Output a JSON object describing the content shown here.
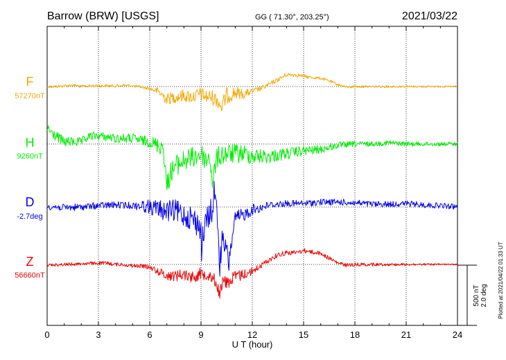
{
  "header": {
    "station": "Barrow (BRW)  [USGS]",
    "coords": "GG ( 71.30°, 203.25°)",
    "date": "2021/03/22"
  },
  "colors": {
    "F": "#f4a800",
    "H": "#00ee00",
    "D": "#0000ee",
    "Z": "#ee0000",
    "axis": "#000000",
    "grid": "#000000"
  },
  "chart_data": {
    "type": "line",
    "xlabel": "U T (hour)",
    "xlim": [
      0,
      24
    ],
    "xticks": [
      "0",
      "3",
      "6",
      "9",
      "12",
      "15",
      "18",
      "21",
      "24"
    ],
    "grid": "dotted",
    "scale_bar": {
      "nT": "500 nT",
      "deg": "2.0 deg"
    },
    "footer": "Plotted at 2021/04/22 01:33 UT",
    "series": [
      {
        "name": "F",
        "baseline": "57270nT",
        "color_key": "F",
        "points": [
          [
            0,
            125
          ],
          [
            0.5,
            125
          ],
          [
            1,
            124
          ],
          [
            1.5,
            123
          ],
          [
            2,
            125
          ],
          [
            2.5,
            124
          ],
          [
            3,
            124
          ],
          [
            3.5,
            124
          ],
          [
            4,
            124
          ],
          [
            4.5,
            123
          ],
          [
            5,
            124
          ],
          [
            5.5,
            126
          ],
          [
            6,
            128
          ],
          [
            6.5,
            132
          ],
          [
            7,
            143
          ],
          [
            7.5,
            140
          ],
          [
            8,
            138
          ],
          [
            8.5,
            140
          ],
          [
            9,
            136
          ],
          [
            9.3,
            140
          ],
          [
            9.6,
            140
          ],
          [
            10,
            145
          ],
          [
            10.2,
            155
          ],
          [
            10.5,
            138
          ],
          [
            11,
            134
          ],
          [
            11.5,
            136
          ],
          [
            12,
            132
          ],
          [
            12.5,
            128
          ],
          [
            13,
            122
          ],
          [
            13.5,
            115
          ],
          [
            14,
            108
          ],
          [
            14.5,
            108
          ],
          [
            15,
            110
          ],
          [
            15.5,
            112
          ],
          [
            16,
            113
          ],
          [
            16.5,
            117
          ],
          [
            17,
            122
          ],
          [
            17.5,
            126
          ],
          [
            18,
            125
          ],
          [
            18.5,
            125
          ],
          [
            19,
            125
          ],
          [
            20,
            125
          ],
          [
            21,
            125
          ],
          [
            22,
            125
          ],
          [
            23,
            125
          ],
          [
            24,
            125
          ]
        ],
        "noise": [
          [
            0,
            2
          ],
          [
            6,
            2
          ],
          [
            6.8,
            8
          ],
          [
            10.6,
            12
          ],
          [
            12,
            4
          ],
          [
            16,
            2
          ],
          [
            24,
            1
          ]
        ]
      },
      {
        "name": "H",
        "baseline": "9260nT",
        "color_key": "H",
        "points": [
          [
            0,
            185
          ],
          [
            0.3,
            193
          ],
          [
            1,
            205
          ],
          [
            1.5,
            205
          ],
          [
            2,
            205
          ],
          [
            2.5,
            197
          ],
          [
            3,
            196
          ],
          [
            3.5,
            198
          ],
          [
            4,
            200
          ],
          [
            4.5,
            200
          ],
          [
            5,
            200
          ],
          [
            5.5,
            203
          ],
          [
            6,
            205
          ],
          [
            6.5,
            210
          ],
          [
            6.8,
            212
          ],
          [
            6.9,
            242
          ],
          [
            7,
            270
          ],
          [
            7.2,
            250
          ],
          [
            7.5,
            240
          ],
          [
            8,
            232
          ],
          [
            8.5,
            228
          ],
          [
            9,
            222
          ],
          [
            9.3,
            232
          ],
          [
            9.5,
            225
          ],
          [
            9.7,
            270
          ],
          [
            9.8,
            240
          ],
          [
            10,
            226
          ],
          [
            10.5,
            222
          ],
          [
            11,
            222
          ],
          [
            11.5,
            222
          ],
          [
            12,
            225
          ],
          [
            12.5,
            226
          ],
          [
            13,
            226
          ],
          [
            13.5,
            224
          ],
          [
            14,
            222
          ],
          [
            14.5,
            220
          ],
          [
            15,
            218
          ],
          [
            16,
            216
          ],
          [
            16.5,
            213
          ],
          [
            17,
            210
          ],
          [
            18,
            208
          ],
          [
            19,
            208
          ],
          [
            20,
            206
          ],
          [
            21,
            208
          ],
          [
            22,
            208
          ],
          [
            23,
            208
          ],
          [
            24,
            208
          ]
        ],
        "noise": [
          [
            0,
            8
          ],
          [
            3,
            6
          ],
          [
            6,
            8
          ],
          [
            7,
            16
          ],
          [
            11,
            15
          ],
          [
            13,
            10
          ],
          [
            16,
            6
          ],
          [
            18,
            4
          ],
          [
            24,
            3
          ]
        ]
      },
      {
        "name": "D",
        "baseline": "-2.7deg",
        "color_key": "D",
        "points": [
          [
            0,
            298
          ],
          [
            1,
            300
          ],
          [
            2,
            299
          ],
          [
            3,
            297
          ],
          [
            4,
            296
          ],
          [
            5,
            297
          ],
          [
            5.5,
            297
          ],
          [
            6,
            299
          ],
          [
            6.5,
            302
          ],
          [
            7,
            305
          ],
          [
            7.5,
            305
          ],
          [
            8,
            310
          ],
          [
            8.5,
            315
          ],
          [
            9,
            330
          ],
          [
            9.05,
            375
          ],
          [
            9.1,
            345
          ],
          [
            9.3,
            320
          ],
          [
            9.5,
            310
          ],
          [
            9.7,
            300
          ],
          [
            9.8,
            270
          ],
          [
            9.9,
            305
          ],
          [
            10,
            330
          ],
          [
            10.1,
            385
          ],
          [
            10.2,
            350
          ],
          [
            10.5,
            360
          ],
          [
            10.6,
            385
          ],
          [
            10.8,
            345
          ],
          [
            11,
            318
          ],
          [
            11.5,
            310
          ],
          [
            12,
            303
          ],
          [
            12.5,
            300
          ],
          [
            13,
            296
          ],
          [
            14,
            294
          ],
          [
            15,
            294
          ],
          [
            16,
            292
          ],
          [
            17,
            292
          ],
          [
            18,
            293
          ],
          [
            19,
            295
          ],
          [
            20,
            295
          ],
          [
            21,
            294
          ],
          [
            22,
            296
          ],
          [
            23,
            297
          ],
          [
            24,
            299
          ]
        ],
        "noise": [
          [
            0,
            5
          ],
          [
            5,
            5
          ],
          [
            6.5,
            14
          ],
          [
            8,
            18
          ],
          [
            10,
            20
          ],
          [
            11.5,
            10
          ],
          [
            13,
            5
          ],
          [
            24,
            4
          ]
        ]
      },
      {
        "name": "Z",
        "baseline": "56660nT",
        "color_key": "Z",
        "points": [
          [
            0,
            383
          ],
          [
            1,
            382
          ],
          [
            2,
            381
          ],
          [
            3,
            380
          ],
          [
            3.5,
            380
          ],
          [
            4,
            382
          ],
          [
            4.5,
            382
          ],
          [
            5,
            384
          ],
          [
            5.5,
            384
          ],
          [
            6,
            386
          ],
          [
            6.5,
            392
          ],
          [
            7,
            398
          ],
          [
            7.5,
            398
          ],
          [
            8,
            396
          ],
          [
            8.5,
            400
          ],
          [
            9,
            395
          ],
          [
            9.5,
            396
          ],
          [
            9.8,
            405
          ],
          [
            10,
            415
          ],
          [
            10.1,
            425
          ],
          [
            10.3,
            405
          ],
          [
            10.5,
            408
          ],
          [
            11,
            400
          ],
          [
            11.5,
            396
          ],
          [
            12,
            392
          ],
          [
            12.5,
            384
          ],
          [
            13,
            375
          ],
          [
            13.5,
            368
          ],
          [
            14,
            365
          ],
          [
            14.5,
            365
          ],
          [
            15,
            362
          ],
          [
            15.5,
            364
          ],
          [
            16,
            366
          ],
          [
            16.5,
            373
          ],
          [
            17,
            380
          ],
          [
            17.5,
            383
          ],
          [
            18,
            382
          ],
          [
            19,
            382
          ],
          [
            20,
            382
          ],
          [
            21,
            382
          ],
          [
            22,
            382
          ],
          [
            23,
            382
          ],
          [
            24,
            382
          ]
        ],
        "noise": [
          [
            0,
            2
          ],
          [
            6,
            3
          ],
          [
            7,
            8
          ],
          [
            11,
            10
          ],
          [
            12.5,
            4
          ],
          [
            24,
            1
          ]
        ]
      }
    ]
  }
}
